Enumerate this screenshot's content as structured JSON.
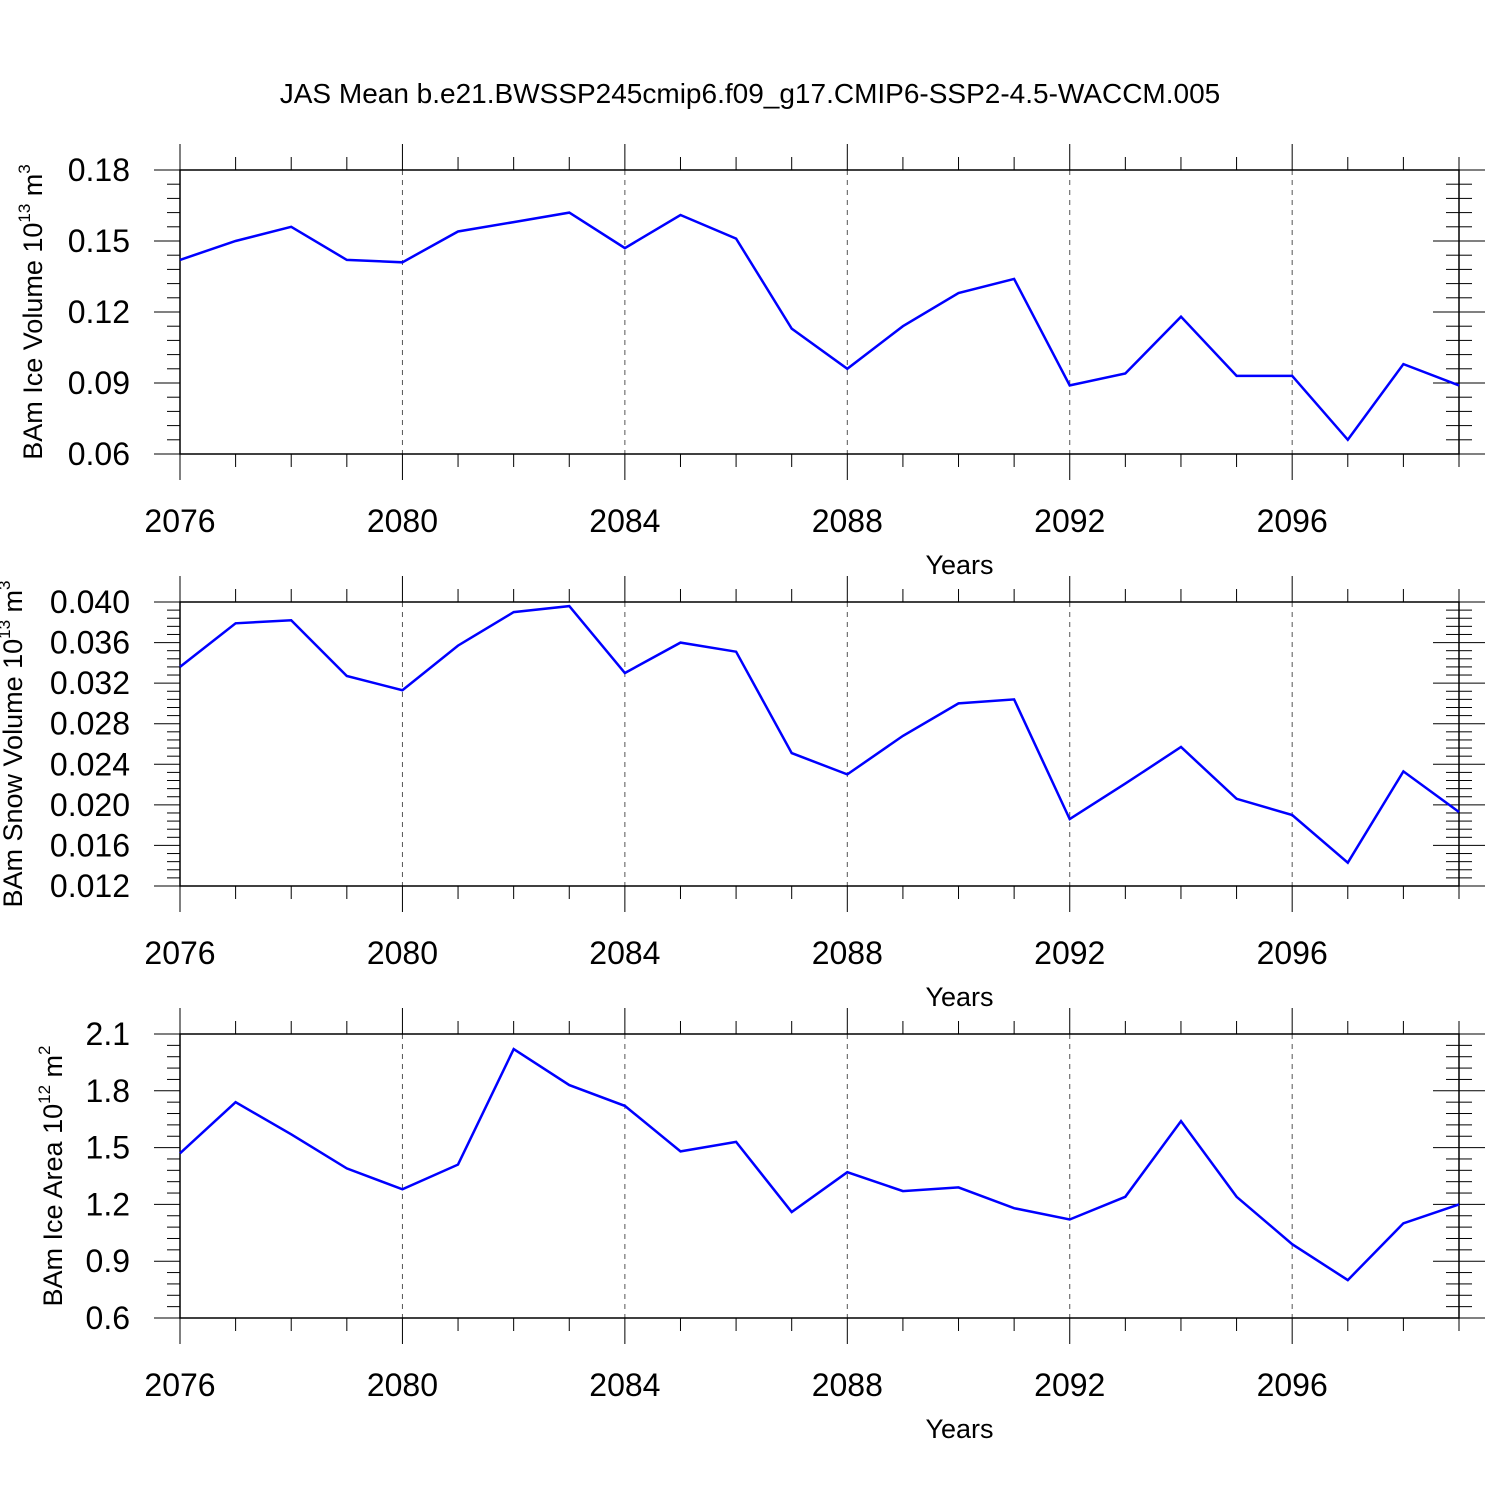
{
  "title": "JAS Mean b.e21.BWSSP245cmip6.f09_g17.CMIP6-SSP2-4.5-WACCM.005",
  "line_color": "#0000ff",
  "chart_data": [
    {
      "type": "line",
      "ylabel": "BAm Ice Volume 10",
      "ylabel_exp": "13",
      "ylabel_unit": " m",
      "ylabel_unit_exp": "3",
      "xlabel": "Years",
      "xlim": [
        2076,
        2099
      ],
      "ylim": [
        0.06,
        0.18
      ],
      "yticks": [
        0.06,
        0.09,
        0.12,
        0.15,
        0.18
      ],
      "ytick_labels": [
        "0.06",
        "0.09",
        "0.12",
        "0.15",
        "0.18"
      ],
      "xticks": [
        2076,
        2080,
        2084,
        2088,
        2092,
        2096
      ],
      "xtick_labels": [
        "2076",
        "2080",
        "2084",
        "2088",
        "2092",
        "2096"
      ],
      "grid": "vertical-dashed",
      "x": [
        2076,
        2077,
        2078,
        2079,
        2080,
        2081,
        2082,
        2083,
        2084,
        2085,
        2086,
        2087,
        2088,
        2089,
        2090,
        2091,
        2092,
        2093,
        2094,
        2095,
        2096,
        2097,
        2098,
        2099
      ],
      "values": [
        0.142,
        0.15,
        0.156,
        0.142,
        0.141,
        0.154,
        0.158,
        0.162,
        0.147,
        0.161,
        0.151,
        0.113,
        0.096,
        0.114,
        0.128,
        0.134,
        0.089,
        0.094,
        0.118,
        0.093,
        0.093,
        0.066,
        0.098,
        0.089
      ]
    },
    {
      "type": "line",
      "ylabel": "BAm Snow Volume 10",
      "ylabel_exp": "13",
      "ylabel_unit": " m",
      "ylabel_unit_exp": "3",
      "xlabel": "Years",
      "xlim": [
        2076,
        2099
      ],
      "ylim": [
        0.012,
        0.04
      ],
      "yticks": [
        0.012,
        0.016,
        0.02,
        0.024,
        0.028,
        0.032,
        0.036,
        0.04
      ],
      "ytick_labels": [
        "0.012",
        "0.016",
        "0.020",
        "0.024",
        "0.028",
        "0.032",
        "0.036",
        "0.040"
      ],
      "xticks": [
        2076,
        2080,
        2084,
        2088,
        2092,
        2096
      ],
      "xtick_labels": [
        "2076",
        "2080",
        "2084",
        "2088",
        "2092",
        "2096"
      ],
      "grid": "vertical-dashed",
      "x": [
        2076,
        2077,
        2078,
        2079,
        2080,
        2081,
        2082,
        2083,
        2084,
        2085,
        2086,
        2087,
        2088,
        2089,
        2090,
        2091,
        2092,
        2093,
        2094,
        2095,
        2096,
        2097,
        2098,
        2099
      ],
      "values": [
        0.0336,
        0.0379,
        0.0382,
        0.0327,
        0.0313,
        0.0357,
        0.039,
        0.0396,
        0.033,
        0.036,
        0.0351,
        0.0251,
        0.023,
        0.0268,
        0.03,
        0.0304,
        0.0186,
        0.0221,
        0.0257,
        0.0206,
        0.019,
        0.0143,
        0.0233,
        0.0193
      ]
    },
    {
      "type": "line",
      "ylabel": "BAm Ice Area 10",
      "ylabel_exp": "12",
      "ylabel_unit": " m",
      "ylabel_unit_exp": "2",
      "xlabel": "Years",
      "xlim": [
        2076,
        2099
      ],
      "ylim": [
        0.6,
        2.1
      ],
      "yticks": [
        0.6,
        0.9,
        1.2,
        1.5,
        1.8,
        2.1
      ],
      "ytick_labels": [
        "0.6",
        "0.9",
        "1.2",
        "1.5",
        "1.8",
        "2.1"
      ],
      "xticks": [
        2076,
        2080,
        2084,
        2088,
        2092,
        2096
      ],
      "xtick_labels": [
        "2076",
        "2080",
        "2084",
        "2088",
        "2092",
        "2096"
      ],
      "grid": "vertical-dashed",
      "x": [
        2076,
        2077,
        2078,
        2079,
        2080,
        2081,
        2082,
        2083,
        2084,
        2085,
        2086,
        2087,
        2088,
        2089,
        2090,
        2091,
        2092,
        2093,
        2094,
        2095,
        2096,
        2097,
        2098,
        2099
      ],
      "values": [
        1.47,
        1.74,
        1.57,
        1.39,
        1.28,
        1.41,
        2.02,
        1.83,
        1.72,
        1.48,
        1.53,
        1.16,
        1.37,
        1.27,
        1.29,
        1.18,
        1.12,
        1.24,
        1.64,
        1.24,
        0.99,
        0.8,
        1.1,
        1.2
      ]
    }
  ]
}
